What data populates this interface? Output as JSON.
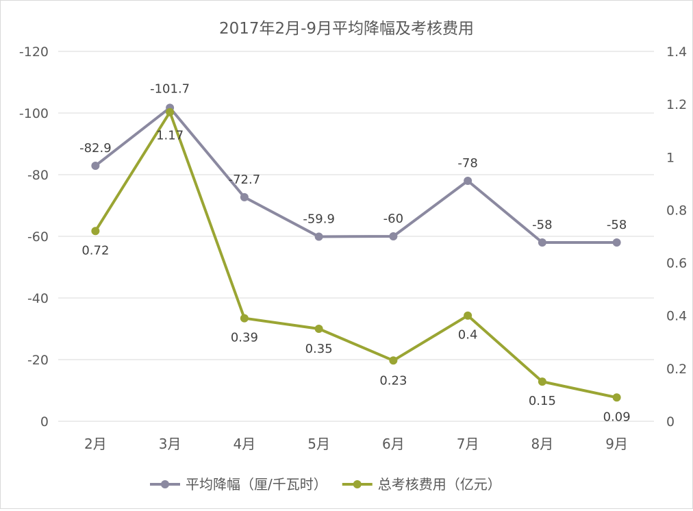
{
  "chart_data": {
    "type": "line",
    "title": "2017年2月-9月平均降幅及考核费用",
    "categories": [
      "2月",
      "3月",
      "4月",
      "5月",
      "6月",
      "7月",
      "8月",
      "9月"
    ],
    "left_axis": {
      "range": [
        0,
        -120
      ],
      "ticks": [
        "-120",
        "-100",
        "-80",
        "-60",
        "-40",
        "-20",
        "0"
      ],
      "tick_values": [
        -120,
        -100,
        -80,
        -60,
        -40,
        -20,
        0
      ],
      "reversed": true
    },
    "right_axis": {
      "range": [
        0,
        1.4
      ],
      "ticks": [
        "1.4",
        "1.2",
        "1",
        "0.8",
        "0.6",
        "0.4",
        "0.2",
        "0"
      ],
      "tick_values": [
        1.4,
        1.2,
        1.0,
        0.8,
        0.6,
        0.4,
        0.2,
        0
      ]
    },
    "grid": true,
    "legend_position": "bottom",
    "series": [
      {
        "name": "平均降幅（厘/千瓦时）",
        "axis": "left",
        "color": "#8b89a0",
        "values": [
          -82.9,
          -101.7,
          -72.7,
          -59.9,
          -60,
          -78,
          -58,
          -58
        ],
        "labels": [
          "-82.9",
          "-101.7",
          "-72.7",
          "-59.9",
          "-60",
          "-78",
          "-58",
          "-58"
        ]
      },
      {
        "name": "总考核费用（亿元）",
        "axis": "right",
        "color": "#9aa533",
        "values": [
          0.72,
          1.17,
          0.39,
          0.35,
          0.23,
          0.4,
          0.15,
          0.09
        ],
        "labels": [
          "0.72",
          "1.17",
          "0.39",
          "0.35",
          "0.23",
          "0.4",
          "0.15",
          "0.09"
        ]
      }
    ]
  }
}
